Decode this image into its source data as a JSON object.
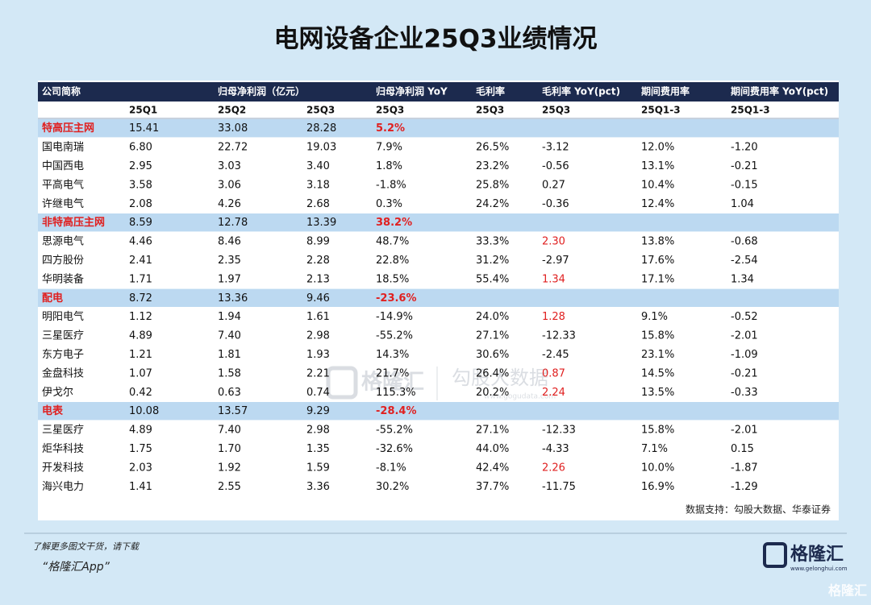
{
  "title": "电网设备企业25Q3业绩情况",
  "table": {
    "header": [
      "公司简称",
      null,
      "归母净利润（亿元）",
      null,
      "归母净利润 YoY",
      "毛利率",
      "毛利率 YoY(pct)",
      "期间费用率",
      "期间费用率 YoY(pct)"
    ],
    "subheader": [
      null,
      "25Q1",
      "25Q2",
      "25Q3",
      "25Q3",
      "25Q3",
      "25Q3",
      "25Q1-3",
      "25Q1-3"
    ],
    "highlight_color": "#e02020",
    "rows": [
      {
        "group": true,
        "cells": [
          "特高压主网",
          "15.41",
          "33.08",
          "28.28",
          "5.2%"
        ]
      },
      {
        "cells": [
          "国电南瑞",
          "6.80",
          "22.72",
          "19.03",
          "7.9%",
          "26.5%",
          "-3.12",
          "12.0%",
          "-1.20"
        ]
      },
      {
        "cells": [
          "中国西电",
          "2.95",
          "3.03",
          "3.40",
          "1.8%",
          "23.2%",
          "-0.56",
          "13.1%",
          "-0.21"
        ]
      },
      {
        "cells": [
          "平高电气",
          "3.58",
          "3.06",
          "3.18",
          "-1.8%",
          "25.8%",
          "0.27",
          "10.4%",
          "-0.15"
        ]
      },
      {
        "cells": [
          "许继电气",
          "2.08",
          "4.26",
          "2.68",
          "0.3%",
          "24.2%",
          "-0.36",
          "12.4%",
          "1.04"
        ]
      },
      {
        "group": true,
        "cells": [
          "非特高压主网",
          "8.59",
          "12.78",
          "13.39",
          "38.2%"
        ]
      },
      {
        "cells": [
          "思源电气",
          "4.46",
          "8.46",
          "8.99",
          "48.7%",
          "33.3%",
          "2.30",
          "13.8%",
          "-0.68"
        ],
        "red": [
          6
        ]
      },
      {
        "cells": [
          "四方股份",
          "2.41",
          "2.35",
          "2.28",
          "22.8%",
          "31.2%",
          "-2.97",
          "17.6%",
          "-2.54"
        ]
      },
      {
        "cells": [
          "华明装备",
          "1.71",
          "1.97",
          "2.13",
          "18.5%",
          "55.4%",
          "1.34",
          "17.1%",
          "1.34"
        ],
        "red": [
          6
        ]
      },
      {
        "group": true,
        "cells": [
          "配电",
          "8.72",
          "13.36",
          "9.46",
          "-23.6%"
        ]
      },
      {
        "cells": [
          "明阳电气",
          "1.12",
          "1.94",
          "1.61",
          "-14.9%",
          "24.0%",
          "1.28",
          "9.1%",
          "-0.52"
        ],
        "red": [
          6
        ]
      },
      {
        "cells": [
          "三星医疗",
          "4.89",
          "7.40",
          "2.98",
          "-55.2%",
          "27.1%",
          "-12.33",
          "15.8%",
          "-2.01"
        ]
      },
      {
        "cells": [
          "东方电子",
          "1.21",
          "1.81",
          "1.93",
          "14.3%",
          "30.6%",
          "-2.45",
          "23.1%",
          "-1.09"
        ]
      },
      {
        "cells": [
          "金盘科技",
          "1.07",
          "1.58",
          "2.21",
          "21.7%",
          "26.4%",
          "0.87",
          "14.5%",
          "-0.21"
        ],
        "red": [
          6
        ]
      },
      {
        "cells": [
          "伊戈尔",
          "0.42",
          "0.63",
          "0.74",
          "115.3%",
          "20.2%",
          "2.24",
          "13.5%",
          "-0.33"
        ],
        "red": [
          6
        ]
      },
      {
        "group": true,
        "cells": [
          "电表",
          "10.08",
          "13.57",
          "9.29",
          "-28.4%"
        ]
      },
      {
        "cells": [
          "三星医疗",
          "4.89",
          "7.40",
          "2.98",
          "-55.2%",
          "27.1%",
          "-12.33",
          "15.8%",
          "-2.01"
        ]
      },
      {
        "cells": [
          "炬华科技",
          "1.75",
          "1.70",
          "1.35",
          "-32.6%",
          "44.0%",
          "-4.33",
          "7.1%",
          "0.15"
        ]
      },
      {
        "cells": [
          "开发科技",
          "2.03",
          "1.92",
          "1.59",
          "-8.1%",
          "42.4%",
          "2.26",
          "10.0%",
          "-1.87"
        ],
        "red": [
          6
        ]
      },
      {
        "cells": [
          "海兴电力",
          "1.41",
          "2.55",
          "3.36",
          "30.2%",
          "37.7%",
          "-11.75",
          "16.9%",
          "-1.29"
        ]
      }
    ],
    "source": "数据支持：勾股大数据、华泰证券"
  },
  "watermark": {
    "brand": "格隆汇",
    "partner": "勾股大数据",
    "url": "www.gogudata.com"
  },
  "footer": {
    "line1": "了解更多图文干货，请下载",
    "line2": "“格隆汇App”",
    "logo": "格隆汇",
    "logo_url": "www.gelonghui.com",
    "corner": "格隆汇"
  }
}
